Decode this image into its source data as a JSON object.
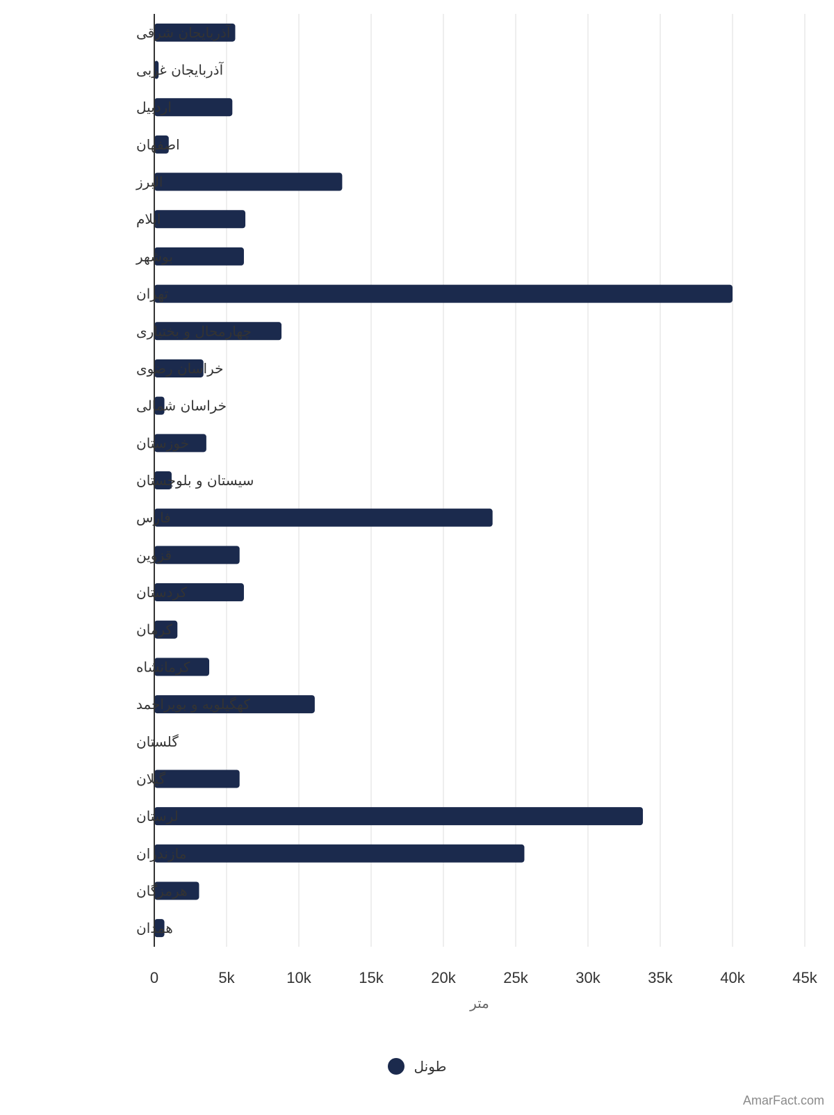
{
  "chart_data": {
    "type": "bar",
    "orientation": "horizontal",
    "categories": [
      "آذربایجان شرقی",
      "آذربایجان غربی",
      "اردبیل",
      "اصفهان",
      "البرز",
      "ایلام",
      "بوشهر",
      "تهران",
      "چهارمحال و بختیاری",
      "خراسان رضوی",
      "خراسان شمالی",
      "خوزستان",
      "سیستان و بلوچستان",
      "فارس",
      "قزوین",
      "کردستان",
      "کرمان",
      "کرمانشاه",
      "کهگیلویه و بویراحمد",
      "گلستان",
      "گیلان",
      "لرستان",
      "مازندران",
      "هرمزگان",
      "همدان"
    ],
    "series": [
      {
        "name": "طونل",
        "values": [
          5600,
          300,
          5400,
          1000,
          13000,
          6300,
          6200,
          40000,
          8800,
          3400,
          700,
          3600,
          1200,
          23400,
          5900,
          6200,
          1600,
          3800,
          11100,
          0,
          5900,
          33800,
          25600,
          3100,
          700
        ]
      }
    ],
    "xlabel": "متر",
    "ylabel": "",
    "xlim": [
      0,
      45000
    ],
    "xticks": [
      "0",
      "5k",
      "10k",
      "15k",
      "20k",
      "25k",
      "30k",
      "35k",
      "40k",
      "45k"
    ],
    "grid": "vertical",
    "legend_position": "bottom-center",
    "bar_color": "#1b2a4d"
  },
  "watermark": "AmarFact.com"
}
